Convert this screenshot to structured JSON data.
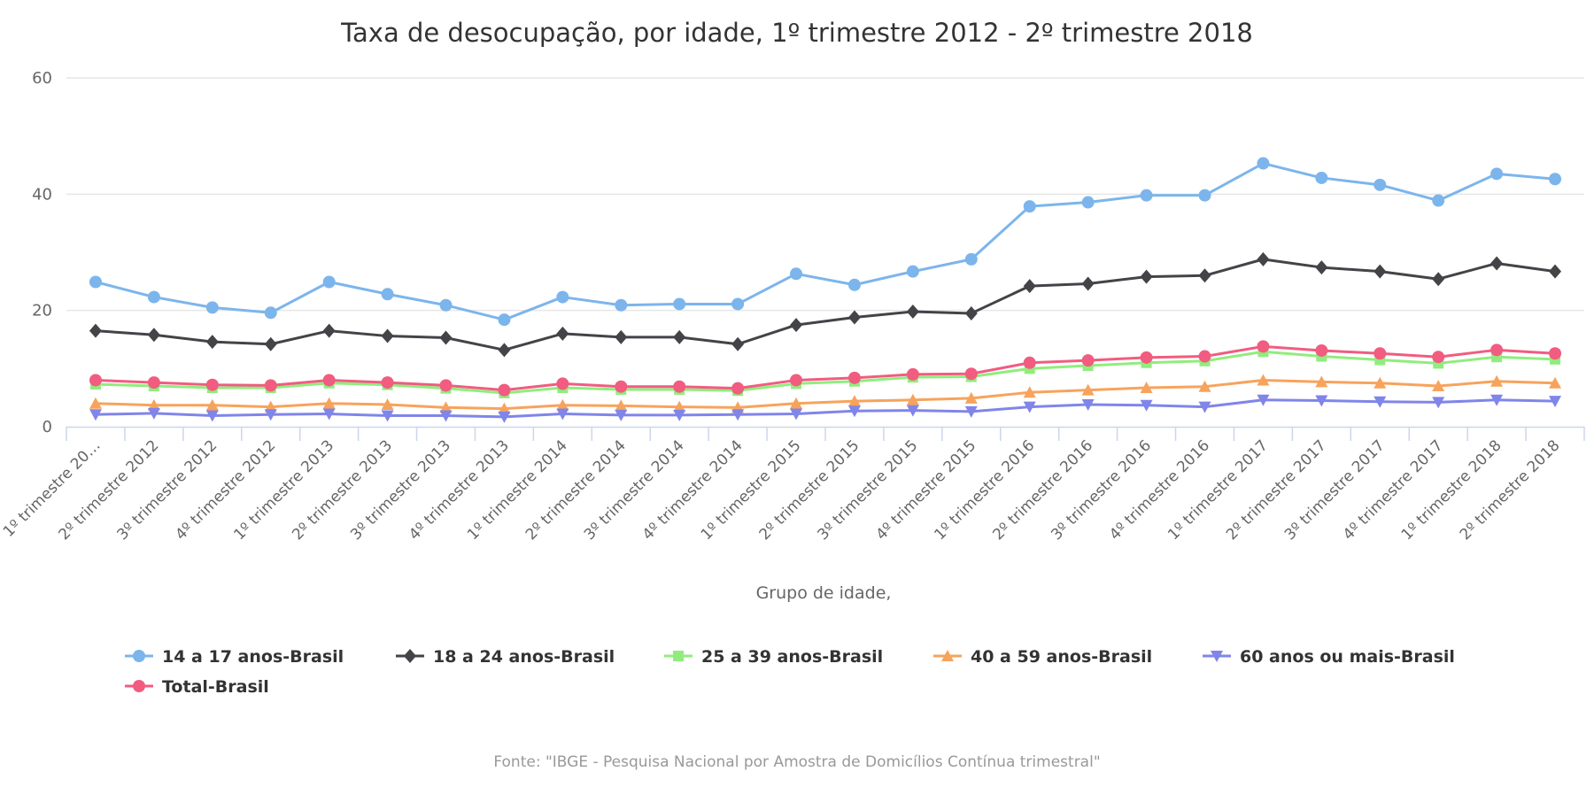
{
  "chart_data": {
    "type": "line",
    "title": "Taxa de desocupação, por idade, 1º trimestre 2012 - 2º trimestre 2018",
    "xlabel": "Grupo de idade,",
    "ylabel": "",
    "ylim": [
      0,
      60
    ],
    "yticks": [
      0,
      20,
      40,
      60
    ],
    "grid": true,
    "legend_position": "bottom",
    "source": "Fonte: \"IBGE - Pesquisa Nacional por Amostra de Domicílios Contínua trimestral\"",
    "categories": [
      "1º trimestre 20…",
      "2º trimestre 2012",
      "3º trimestre 2012",
      "4º trimestre 2012",
      "1º trimestre 2013",
      "2º trimestre 2013",
      "3º trimestre 2013",
      "4º trimestre 2013",
      "1º trimestre 2014",
      "2º trimestre 2014",
      "3º trimestre 2014",
      "4º trimestre 2014",
      "1º trimestre 2015",
      "2º trimestre 2015",
      "3º trimestre 2015",
      "4º trimestre 2015",
      "1º trimestre 2016",
      "2º trimestre 2016",
      "3º trimestre 2016",
      "4º trimestre 2016",
      "1º trimestre 2017",
      "2º trimestre 2017",
      "3º trimestre 2017",
      "4º trimestre 2017",
      "1º trimestre 2018",
      "2º trimestre 2018"
    ],
    "series": [
      {
        "name": "14 a 17 anos-Brasil",
        "color": "#7cb5ec",
        "marker": "circle",
        "values": [
          24.9,
          22.3,
          20.5,
          19.6,
          24.9,
          22.8,
          20.9,
          18.4,
          22.3,
          20.9,
          21.1,
          21.1,
          26.3,
          24.4,
          26.7,
          28.8,
          37.9,
          38.6,
          39.8,
          39.8,
          45.3,
          42.8,
          41.6,
          38.9,
          43.5,
          42.6
        ]
      },
      {
        "name": "18 a 24 anos-Brasil",
        "color": "#434348",
        "marker": "diamond",
        "values": [
          16.5,
          15.8,
          14.6,
          14.2,
          16.5,
          15.6,
          15.3,
          13.2,
          16.0,
          15.4,
          15.4,
          14.2,
          17.5,
          18.8,
          19.8,
          19.5,
          24.2,
          24.6,
          25.8,
          26.0,
          28.8,
          27.4,
          26.7,
          25.4,
          28.1,
          26.7
        ]
      },
      {
        "name": "25 a 39 anos-Brasil",
        "color": "#90ed7d",
        "marker": "square",
        "values": [
          7.3,
          7.0,
          6.7,
          6.7,
          7.5,
          7.2,
          6.6,
          5.8,
          6.7,
          6.4,
          6.4,
          6.2,
          7.4,
          7.8,
          8.5,
          8.6,
          10.0,
          10.5,
          11.0,
          11.3,
          12.9,
          12.1,
          11.5,
          10.9,
          12.0,
          11.6
        ]
      },
      {
        "name": "40 a 59 anos-Brasil",
        "color": "#f7a35c",
        "marker": "triangle",
        "values": [
          4.0,
          3.7,
          3.7,
          3.4,
          4.0,
          3.8,
          3.3,
          3.1,
          3.7,
          3.6,
          3.4,
          3.3,
          4.0,
          4.4,
          4.6,
          4.9,
          5.9,
          6.3,
          6.7,
          6.9,
          8.0,
          7.7,
          7.5,
          7.0,
          7.8,
          7.5
        ]
      },
      {
        "name": "60 anos ou mais-Brasil",
        "color": "#8085e9",
        "marker": "triangle-down",
        "values": [
          2.1,
          2.3,
          1.9,
          2.1,
          2.2,
          1.9,
          1.9,
          1.7,
          2.2,
          2.0,
          2.0,
          2.1,
          2.2,
          2.7,
          2.8,
          2.6,
          3.4,
          3.8,
          3.7,
          3.4,
          4.6,
          4.5,
          4.3,
          4.2,
          4.6,
          4.4
        ]
      },
      {
        "name": "Total-Brasil",
        "color": "#f15c80",
        "marker": "circle",
        "values": [
          8.0,
          7.6,
          7.2,
          7.1,
          8.0,
          7.6,
          7.1,
          6.3,
          7.4,
          6.9,
          6.9,
          6.6,
          8.0,
          8.4,
          9.0,
          9.1,
          11.0,
          11.4,
          11.9,
          12.1,
          13.8,
          13.1,
          12.6,
          12.0,
          13.2,
          12.6
        ]
      }
    ]
  }
}
